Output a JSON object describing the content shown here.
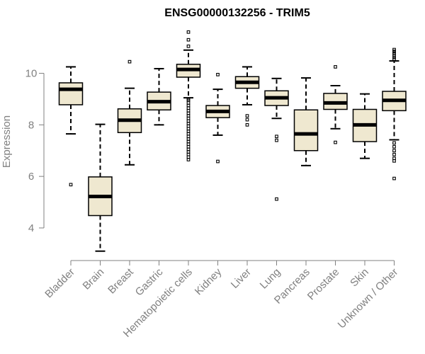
{
  "chart_data": {
    "type": "boxplot",
    "title": "ENSG00000132256 - TRIM5",
    "xlabel": "",
    "ylabel": "Expression",
    "ylim": [
      2.9,
      11.8
    ],
    "yticks": [
      4,
      6,
      8,
      10
    ],
    "box_fill": "#efe8d0",
    "box_stroke": "#000000",
    "axis_color": "#808080",
    "categories": [
      "Bladder",
      "Brain",
      "Breast",
      "Gastric",
      "Hematopoietic cells",
      "Kidney",
      "Liver",
      "Lung",
      "Pancreas",
      "Prostate",
      "Skin",
      "Unknown / Other"
    ],
    "boxes": [
      {
        "label": "Bladder",
        "whislo": 7.65,
        "q1": 8.78,
        "med": 9.38,
        "q3": 9.63,
        "whishi": 10.25,
        "fliers": [
          5.68
        ]
      },
      {
        "label": "Brain",
        "whislo": 3.1,
        "q1": 4.48,
        "med": 5.22,
        "q3": 5.98,
        "whishi": 8.02,
        "fliers": []
      },
      {
        "label": "Breast",
        "whislo": 6.45,
        "q1": 7.7,
        "med": 8.18,
        "q3": 8.62,
        "whishi": 9.42,
        "fliers": [
          10.45
        ]
      },
      {
        "label": "Gastric",
        "whislo": 8.0,
        "q1": 8.58,
        "med": 8.9,
        "q3": 9.27,
        "whishi": 10.18,
        "fliers": []
      },
      {
        "label": "Hematopoietic cells",
        "whislo": 9.05,
        "q1": 9.85,
        "med": 10.15,
        "q3": 10.35,
        "whishi": 10.9,
        "fliers": [
          11.6,
          11.3,
          11.05,
          9.0,
          8.95,
          8.85,
          8.75,
          8.65,
          8.55,
          8.45,
          8.35,
          8.25,
          8.15,
          8.05,
          7.95,
          7.85,
          7.75,
          7.65,
          7.55,
          7.45,
          7.35,
          7.25,
          7.15,
          7.05,
          6.95,
          6.85,
          6.75,
          6.65
        ]
      },
      {
        "label": "Kidney",
        "whislo": 7.6,
        "q1": 8.28,
        "med": 8.52,
        "q3": 8.75,
        "whishi": 9.38,
        "fliers": [
          9.95,
          6.58
        ]
      },
      {
        "label": "Liver",
        "whislo": 8.78,
        "q1": 9.42,
        "med": 9.65,
        "q3": 9.87,
        "whishi": 10.25,
        "fliers": [
          8.35,
          8.2,
          8.0
        ]
      },
      {
        "label": "Lung",
        "whislo": 8.25,
        "q1": 8.75,
        "med": 9.05,
        "q3": 9.32,
        "whishi": 9.8,
        "fliers": [
          7.55,
          7.4,
          5.12
        ]
      },
      {
        "label": "Pancreas",
        "whislo": 6.42,
        "q1": 7.0,
        "med": 7.65,
        "q3": 8.58,
        "whishi": 9.82,
        "fliers": []
      },
      {
        "label": "Prostate",
        "whislo": 7.85,
        "q1": 8.6,
        "med": 8.85,
        "q3": 9.22,
        "whishi": 9.52,
        "fliers": [
          10.25,
          7.32
        ]
      },
      {
        "label": "Skin",
        "whislo": 6.7,
        "q1": 7.35,
        "med": 8.0,
        "q3": 8.6,
        "whishi": 9.2,
        "fliers": []
      },
      {
        "label": "Unknown / Other",
        "whislo": 7.42,
        "q1": 8.55,
        "med": 8.95,
        "q3": 9.3,
        "whishi": 10.48,
        "fliers": [
          10.92,
          10.85,
          10.78,
          10.7,
          10.62,
          10.55,
          7.3,
          7.15,
          7.0,
          6.85,
          6.7,
          6.6,
          5.92
        ]
      }
    ]
  }
}
